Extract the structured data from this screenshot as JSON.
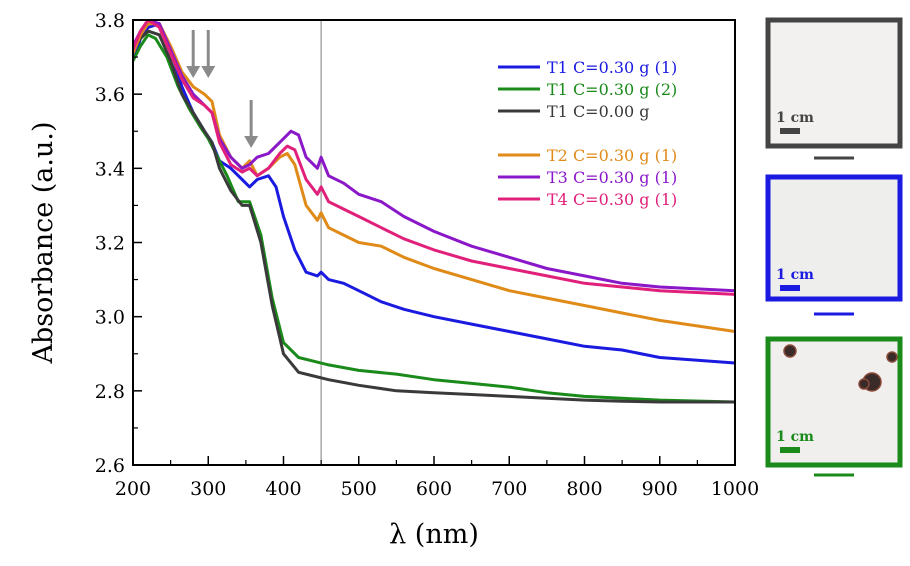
{
  "chart_data": {
    "type": "line",
    "title": "",
    "xlabel": "λ (nm)",
    "ylabel": "Absorbance (a.u.)",
    "xlim": [
      200,
      1000
    ],
    "ylim": [
      2.6,
      3.8
    ],
    "xticks": [
      "200",
      "300",
      "400",
      "500",
      "600",
      "700",
      "800",
      "900",
      "1000"
    ],
    "yticks": [
      "2.6",
      "2.8",
      "3.0",
      "3.2",
      "3.4",
      "3.6",
      "3.8"
    ],
    "grid": false,
    "legend_position": "top-right",
    "vertical_marker_x": 450,
    "arrows_at_x": [
      280,
      300,
      357
    ],
    "series": [
      {
        "name": "T1 C=0.30 g (1)",
        "color": "#1a1ae0",
        "points": [
          [
            200,
            3.69
          ],
          [
            210,
            3.75
          ],
          [
            220,
            3.78
          ],
          [
            235,
            3.79
          ],
          [
            250,
            3.72
          ],
          [
            265,
            3.62
          ],
          [
            280,
            3.55
          ],
          [
            295,
            3.5
          ],
          [
            305,
            3.47
          ],
          [
            315,
            3.42
          ],
          [
            330,
            3.4
          ],
          [
            345,
            3.37
          ],
          [
            355,
            3.35
          ],
          [
            365,
            3.37
          ],
          [
            380,
            3.38
          ],
          [
            390,
            3.35
          ],
          [
            400,
            3.27
          ],
          [
            415,
            3.18
          ],
          [
            430,
            3.12
          ],
          [
            445,
            3.11
          ],
          [
            450,
            3.12
          ],
          [
            460,
            3.1
          ],
          [
            480,
            3.09
          ],
          [
            500,
            3.07
          ],
          [
            530,
            3.04
          ],
          [
            560,
            3.02
          ],
          [
            600,
            3.0
          ],
          [
            650,
            2.98
          ],
          [
            700,
            2.96
          ],
          [
            750,
            2.94
          ],
          [
            800,
            2.92
          ],
          [
            850,
            2.91
          ],
          [
            900,
            2.89
          ],
          [
            1000,
            2.875
          ]
        ]
      },
      {
        "name": "T1 C=0.30 g (2)",
        "color": "#1a8a1a",
        "points": [
          [
            200,
            3.69
          ],
          [
            210,
            3.73
          ],
          [
            220,
            3.76
          ],
          [
            230,
            3.75
          ],
          [
            245,
            3.7
          ],
          [
            260,
            3.62
          ],
          [
            275,
            3.56
          ],
          [
            290,
            3.51
          ],
          [
            300,
            3.48
          ],
          [
            310,
            3.44
          ],
          [
            325,
            3.38
          ],
          [
            340,
            3.31
          ],
          [
            355,
            3.31
          ],
          [
            370,
            3.22
          ],
          [
            385,
            3.05
          ],
          [
            400,
            2.93
          ],
          [
            420,
            2.89
          ],
          [
            440,
            2.88
          ],
          [
            460,
            2.87
          ],
          [
            500,
            2.855
          ],
          [
            550,
            2.845
          ],
          [
            600,
            2.83
          ],
          [
            650,
            2.82
          ],
          [
            700,
            2.81
          ],
          [
            750,
            2.795
          ],
          [
            800,
            2.785
          ],
          [
            850,
            2.78
          ],
          [
            900,
            2.775
          ],
          [
            1000,
            2.77
          ]
        ]
      },
      {
        "name": "T1 C=0.00 g",
        "color": "#3a3a3a",
        "points": [
          [
            200,
            3.72
          ],
          [
            210,
            3.75
          ],
          [
            220,
            3.77
          ],
          [
            235,
            3.76
          ],
          [
            250,
            3.69
          ],
          [
            265,
            3.6
          ],
          [
            280,
            3.55
          ],
          [
            295,
            3.5
          ],
          [
            305,
            3.47
          ],
          [
            315,
            3.4
          ],
          [
            330,
            3.34
          ],
          [
            345,
            3.3
          ],
          [
            355,
            3.3
          ],
          [
            370,
            3.2
          ],
          [
            385,
            3.03
          ],
          [
            400,
            2.9
          ],
          [
            420,
            2.85
          ],
          [
            440,
            2.84
          ],
          [
            460,
            2.83
          ],
          [
            500,
            2.815
          ],
          [
            550,
            2.8
          ],
          [
            600,
            2.795
          ],
          [
            650,
            2.79
          ],
          [
            700,
            2.785
          ],
          [
            750,
            2.78
          ],
          [
            800,
            2.775
          ],
          [
            850,
            2.772
          ],
          [
            900,
            2.77
          ],
          [
            1000,
            2.77
          ]
        ]
      },
      {
        "name": "T2 C=0.30 g (1)",
        "color": "#e08a18",
        "points": [
          [
            200,
            3.71
          ],
          [
            210,
            3.76
          ],
          [
            220,
            3.79
          ],
          [
            235,
            3.79
          ],
          [
            250,
            3.73
          ],
          [
            265,
            3.66
          ],
          [
            280,
            3.62
          ],
          [
            295,
            3.6
          ],
          [
            305,
            3.58
          ],
          [
            315,
            3.49
          ],
          [
            330,
            3.43
          ],
          [
            345,
            3.4
          ],
          [
            355,
            3.42
          ],
          [
            365,
            3.38
          ],
          [
            380,
            3.4
          ],
          [
            395,
            3.43
          ],
          [
            405,
            3.44
          ],
          [
            415,
            3.41
          ],
          [
            430,
            3.3
          ],
          [
            445,
            3.26
          ],
          [
            450,
            3.28
          ],
          [
            460,
            3.24
          ],
          [
            480,
            3.22
          ],
          [
            500,
            3.2
          ],
          [
            530,
            3.19
          ],
          [
            560,
            3.16
          ],
          [
            600,
            3.13
          ],
          [
            650,
            3.1
          ],
          [
            700,
            3.07
          ],
          [
            750,
            3.05
          ],
          [
            800,
            3.03
          ],
          [
            850,
            3.01
          ],
          [
            900,
            2.99
          ],
          [
            1000,
            2.96
          ]
        ]
      },
      {
        "name": "T3 C=0.30 g (1)",
        "color": "#8a18c8",
        "points": [
          [
            200,
            3.73
          ],
          [
            210,
            3.77
          ],
          [
            220,
            3.8
          ],
          [
            235,
            3.79
          ],
          [
            250,
            3.72
          ],
          [
            265,
            3.65
          ],
          [
            280,
            3.6
          ],
          [
            295,
            3.57
          ],
          [
            305,
            3.55
          ],
          [
            315,
            3.48
          ],
          [
            330,
            3.43
          ],
          [
            345,
            3.4
          ],
          [
            355,
            3.41
          ],
          [
            365,
            3.43
          ],
          [
            380,
            3.44
          ],
          [
            395,
            3.47
          ],
          [
            410,
            3.5
          ],
          [
            420,
            3.49
          ],
          [
            430,
            3.43
          ],
          [
            445,
            3.4
          ],
          [
            450,
            3.43
          ],
          [
            460,
            3.38
          ],
          [
            480,
            3.36
          ],
          [
            500,
            3.33
          ],
          [
            530,
            3.31
          ],
          [
            560,
            3.27
          ],
          [
            600,
            3.23
          ],
          [
            650,
            3.19
          ],
          [
            700,
            3.16
          ],
          [
            750,
            3.13
          ],
          [
            800,
            3.11
          ],
          [
            850,
            3.09
          ],
          [
            900,
            3.08
          ],
          [
            1000,
            3.07
          ]
        ]
      },
      {
        "name": "T4 C=0.30 g (1)",
        "color": "#e0207a",
        "points": [
          [
            200,
            3.72
          ],
          [
            210,
            3.77
          ],
          [
            220,
            3.8
          ],
          [
            235,
            3.78
          ],
          [
            250,
            3.71
          ],
          [
            265,
            3.64
          ],
          [
            280,
            3.59
          ],
          [
            295,
            3.57
          ],
          [
            305,
            3.55
          ],
          [
            315,
            3.47
          ],
          [
            330,
            3.41
          ],
          [
            345,
            3.39
          ],
          [
            355,
            3.4
          ],
          [
            365,
            3.38
          ],
          [
            380,
            3.4
          ],
          [
            395,
            3.44
          ],
          [
            405,
            3.46
          ],
          [
            415,
            3.45
          ],
          [
            430,
            3.37
          ],
          [
            445,
            3.33
          ],
          [
            450,
            3.35
          ],
          [
            460,
            3.31
          ],
          [
            480,
            3.29
          ],
          [
            500,
            3.27
          ],
          [
            530,
            3.24
          ],
          [
            560,
            3.21
          ],
          [
            600,
            3.18
          ],
          [
            650,
            3.15
          ],
          [
            700,
            3.13
          ],
          [
            750,
            3.11
          ],
          [
            800,
            3.09
          ],
          [
            850,
            3.08
          ],
          [
            900,
            3.07
          ],
          [
            1000,
            3.06
          ]
        ]
      }
    ]
  },
  "panels": [
    {
      "scale_label": "1 cm",
      "color": "#444444",
      "bg": "#f2f1ef",
      "spots": []
    },
    {
      "scale_label": "1 cm",
      "color": "#1a1ae0",
      "bg": "#eeeeec",
      "spots": []
    },
    {
      "scale_label": "1 cm",
      "color": "#1a8a1a",
      "bg": "#f0efed",
      "spots": [
        "particle",
        "particle",
        "particle",
        "particle"
      ]
    }
  ]
}
